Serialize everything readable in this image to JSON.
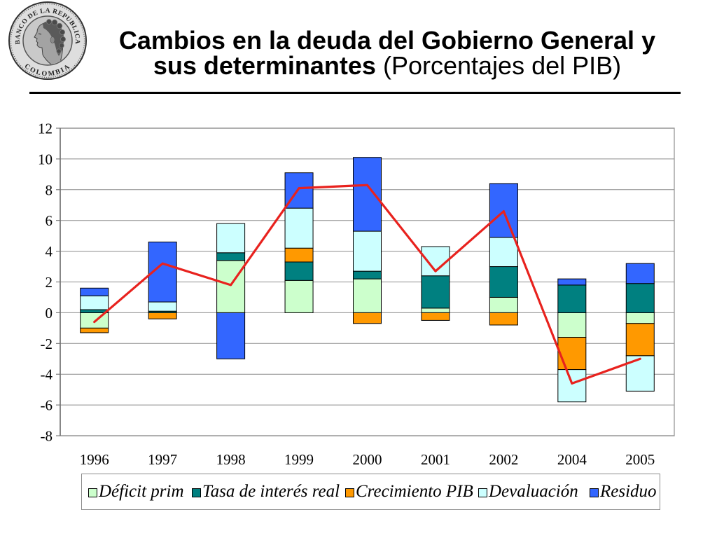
{
  "logo": {
    "ring_top": "BANCO DE LA REPUBLICA",
    "ring_bottom": "COLOMBIA"
  },
  "title": {
    "line1": "Cambios en la deuda del Gobierno General y",
    "line2_bold": "sus determinantes",
    "line2_regular": "(Porcentajes del PIB)"
  },
  "chart_data": {
    "type": "bar",
    "stacked": true,
    "categories": [
      "1996",
      "1997",
      "1998",
      "1999",
      "2000",
      "2001",
      "2002",
      "2004",
      "2005"
    ],
    "ylim": [
      -8,
      12
    ],
    "yticks": [
      12,
      10,
      8,
      6,
      4,
      2,
      0,
      -2,
      -4,
      -6,
      -8
    ],
    "grid": true,
    "legend_position": "bottom",
    "series": [
      {
        "name": "Déficit prim",
        "color": "#CCFFCC",
        "values": [
          -1.0,
          0.0,
          3.4,
          2.1,
          2.2,
          0.3,
          1.0,
          -1.6,
          -0.7
        ]
      },
      {
        "name": "Tasa de interés real",
        "color": "#008080",
        "values": [
          0.2,
          0.1,
          0.5,
          1.2,
          0.5,
          2.1,
          2.0,
          1.8,
          1.9
        ]
      },
      {
        "name": "Crecimiento PIB",
        "color": "#FF9900",
        "values": [
          -0.3,
          -0.4,
          0.0,
          0.9,
          -0.7,
          -0.5,
          -0.8,
          -2.1,
          -2.1
        ]
      },
      {
        "name": "Devaluación",
        "color": "#CCFFFF",
        "values": [
          0.9,
          0.6,
          1.9,
          2.6,
          2.6,
          1.9,
          1.9,
          -2.1,
          -2.3
        ]
      },
      {
        "name": "Residuo",
        "color": "#3366FF",
        "values": [
          0.5,
          3.9,
          -3.0,
          2.3,
          4.8,
          0.0,
          3.5,
          0.4,
          1.3
        ]
      }
    ],
    "line": {
      "type": "line",
      "color": "#E8221E",
      "values": [
        -0.6,
        3.2,
        1.8,
        8.1,
        8.3,
        2.7,
        6.6,
        -4.6,
        -3.0
      ]
    }
  }
}
